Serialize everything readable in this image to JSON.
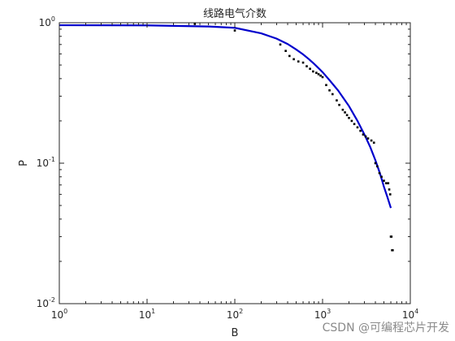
{
  "chart_data": {
    "type": "scatter",
    "title": "线路电气介数",
    "xlabel": "B",
    "ylabel": "P",
    "xscale": "log",
    "yscale": "log",
    "xlim": [
      1,
      10000
    ],
    "ylim": [
      0.01,
      1
    ],
    "x_ticks": [
      {
        "base": "10",
        "exp": "0",
        "value": 1
      },
      {
        "base": "10",
        "exp": "1",
        "value": 10
      },
      {
        "base": "10",
        "exp": "2",
        "value": 100
      },
      {
        "base": "10",
        "exp": "3",
        "value": 1000
      },
      {
        "base": "10",
        "exp": "4",
        "value": 10000
      }
    ],
    "y_ticks": [
      {
        "base": "10",
        "exp": "0",
        "value": 1
      },
      {
        "base": "10",
        "exp": "-1",
        "value": 0.1
      },
      {
        "base": "10",
        "exp": "-2",
        "value": 0.01
      }
    ],
    "grid": false,
    "legend": "none",
    "colors": {
      "points": "#000000",
      "fit": "#0000cc",
      "axes": "#262626"
    },
    "series": [
      {
        "kind": "points",
        "x": [
          35,
          100,
          330,
          380,
          420,
          470,
          530,
          600,
          660,
          720,
          780,
          850,
          900,
          950,
          1000,
          1100,
          1200,
          1300,
          1450,
          1550,
          1700,
          1800,
          1900,
          2000,
          2150,
          2300,
          2500,
          2700,
          2900,
          3100,
          3300,
          3600,
          3850,
          4000,
          4200,
          4450,
          4700,
          5000,
          5300,
          5600,
          5750,
          5900,
          6000,
          6100,
          6200,
          6300
        ],
        "y": [
          0.98,
          0.88,
          0.7,
          0.63,
          0.58,
          0.55,
          0.53,
          0.52,
          0.49,
          0.47,
          0.45,
          0.44,
          0.43,
          0.42,
          0.41,
          0.36,
          0.33,
          0.31,
          0.28,
          0.26,
          0.24,
          0.23,
          0.22,
          0.21,
          0.2,
          0.19,
          0.18,
          0.17,
          0.16,
          0.155,
          0.15,
          0.145,
          0.14,
          0.1,
          0.095,
          0.085,
          0.08,
          0.075,
          0.072,
          0.072,
          0.065,
          0.06,
          0.03,
          0.03,
          0.024,
          0.024
        ]
      },
      {
        "kind": "fit-line",
        "x": [
          1,
          10,
          50,
          100,
          200,
          300,
          400,
          500,
          600,
          700,
          800,
          900,
          1000,
          1200,
          1500,
          2000,
          2500,
          3000,
          3500,
          4000,
          4500,
          5000,
          5500,
          6000
        ],
        "y": [
          0.96,
          0.958,
          0.94,
          0.92,
          0.84,
          0.77,
          0.705,
          0.645,
          0.595,
          0.55,
          0.51,
          0.475,
          0.445,
          0.39,
          0.33,
          0.255,
          0.2,
          0.16,
          0.13,
          0.105,
          0.085,
          0.068,
          0.057,
          0.048
        ]
      }
    ]
  },
  "watermark": "CSDN @可编程芯片开发"
}
